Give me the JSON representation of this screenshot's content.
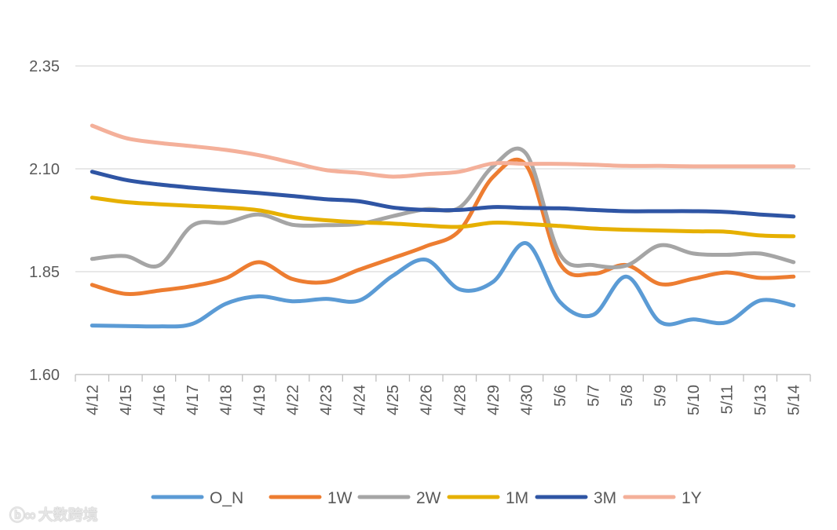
{
  "chart_data": {
    "type": "line",
    "title": "",
    "xlabel": "",
    "ylabel": "",
    "ylim": [
      1.6,
      2.35
    ],
    "yticks": [
      "1.60",
      "1.85",
      "2.10",
      "2.35"
    ],
    "grid": true,
    "legend_position": "bottom",
    "categories": [
      "4/12",
      "4/15",
      "4/16",
      "4/17",
      "4/18",
      "4/19",
      "4/22",
      "4/23",
      "4/24",
      "4/25",
      "4/26",
      "4/28",
      "4/29",
      "4/30",
      "5/6",
      "5/7",
      "5/8",
      "5/9",
      "5/10",
      "5/11",
      "5/13",
      "5/14"
    ],
    "series": [
      {
        "name": "O_N",
        "color": "#5B9BD5",
        "values": [
          1.719,
          1.718,
          1.717,
          1.723,
          1.772,
          1.79,
          1.778,
          1.784,
          1.78,
          1.84,
          1.879,
          1.807,
          1.825,
          1.919,
          1.777,
          1.745,
          1.838,
          1.728,
          1.734,
          1.727,
          1.78,
          1.768
        ]
      },
      {
        "name": "1W",
        "color": "#ED7D31",
        "values": [
          1.818,
          1.796,
          1.804,
          1.815,
          1.834,
          1.873,
          1.832,
          1.825,
          1.855,
          1.883,
          1.912,
          1.95,
          2.08,
          2.108,
          1.87,
          1.845,
          1.866,
          1.82,
          1.833,
          1.848,
          1.835,
          1.838
        ]
      },
      {
        "name": "2W",
        "color": "#A5A5A5",
        "values": [
          1.881,
          1.888,
          1.865,
          1.962,
          1.969,
          1.989,
          1.964,
          1.963,
          1.966,
          1.985,
          2.002,
          2.006,
          2.106,
          2.136,
          1.893,
          1.866,
          1.865,
          1.914,
          1.894,
          1.891,
          1.894,
          1.873
        ]
      },
      {
        "name": "1M",
        "color": "#E6B000",
        "values": [
          2.03,
          2.019,
          2.014,
          2.01,
          2.006,
          1.999,
          1.983,
          1.975,
          1.97,
          1.967,
          1.962,
          1.959,
          1.969,
          1.966,
          1.961,
          1.955,
          1.952,
          1.95,
          1.948,
          1.947,
          1.938,
          1.936
        ]
      },
      {
        "name": "3M",
        "color": "#2F55A4",
        "values": [
          2.093,
          2.073,
          2.062,
          2.054,
          2.047,
          2.041,
          2.034,
          2.026,
          2.021,
          2.006,
          2.0,
          2.0,
          2.007,
          2.005,
          2.004,
          2.0,
          1.997,
          1.997,
          1.997,
          1.995,
          1.989,
          1.984
        ]
      },
      {
        "name": "1Y",
        "color": "#F4B09A",
        "values": [
          2.205,
          2.175,
          2.163,
          2.155,
          2.146,
          2.133,
          2.115,
          2.097,
          2.09,
          2.081,
          2.087,
          2.093,
          2.113,
          2.112,
          2.112,
          2.11,
          2.107,
          2.107,
          2.106,
          2.106,
          2.106,
          2.106
        ]
      }
    ]
  },
  "watermark": {
    "logo": "ⓑ∞",
    "text": "大数跨境"
  }
}
